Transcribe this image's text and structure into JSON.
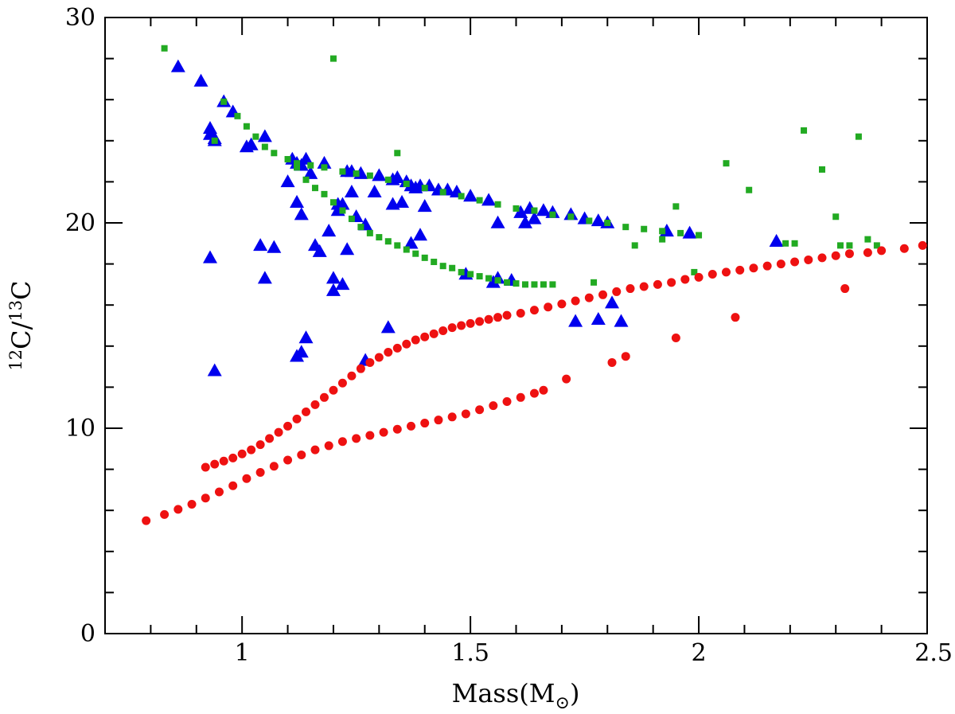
{
  "chart_data": {
    "type": "scatter",
    "title": "",
    "xlabel": "Mass(M",
    "xlabel_subscript": "⊙",
    "xlabel_close": ")",
    "ylabel": {
      "sup1": "12",
      "base1": "C/",
      "sup2": "13",
      "base2": "C"
    },
    "xlim": [
      0.7,
      2.5
    ],
    "ylim": [
      0,
      30
    ],
    "xticks": [
      1,
      1.5,
      2,
      2.5
    ],
    "xtick_labels": [
      "1",
      "1.5",
      "2",
      "2.5"
    ],
    "yticks": [
      0,
      10,
      20,
      30
    ],
    "ytick_labels": [
      "0",
      "10",
      "20",
      "30"
    ],
    "x_minor_step": 0.1,
    "y_minor_step": 2,
    "colors": {
      "triangles": "#0000ee",
      "squares": "#22aa22",
      "circles": "#ee1111"
    },
    "series": [
      {
        "name": "upper-green-curve",
        "marker": "square",
        "color": "#22aa22",
        "x": [
          0.83,
          0.96,
          0.99,
          1.01,
          1.03,
          1.05,
          1.07,
          1.1,
          1.12,
          1.15,
          1.18,
          1.22,
          1.25,
          1.28,
          1.32,
          1.36,
          1.4,
          1.44,
          1.48,
          1.52,
          1.56,
          1.6,
          1.64,
          1.68,
          1.72,
          1.76,
          1.8,
          1.84,
          1.88,
          1.92,
          1.96,
          2.0
        ],
        "y": [
          28.5,
          25.9,
          25.2,
          24.7,
          24.2,
          23.7,
          23.4,
          23.1,
          22.9,
          22.8,
          22.7,
          22.5,
          22.4,
          22.3,
          22.1,
          21.9,
          21.7,
          21.5,
          21.3,
          21.1,
          20.9,
          20.7,
          20.6,
          20.4,
          20.3,
          20.1,
          20.0,
          19.8,
          19.7,
          19.6,
          19.5,
          19.4
        ]
      },
      {
        "name": "lower-green-curve",
        "marker": "square",
        "color": "#22aa22",
        "x": [
          1.12,
          1.14,
          1.16,
          1.18,
          1.2,
          1.22,
          1.24,
          1.26,
          1.28,
          1.3,
          1.32,
          1.34,
          1.36,
          1.38,
          1.4,
          1.42,
          1.44,
          1.46,
          1.48,
          1.5,
          1.52,
          1.54,
          1.56,
          1.58,
          1.6,
          1.62,
          1.64,
          1.66,
          1.68
        ],
        "y": [
          22.7,
          22.1,
          21.7,
          21.4,
          21.0,
          20.6,
          20.2,
          19.8,
          19.5,
          19.3,
          19.1,
          18.9,
          18.7,
          18.5,
          18.3,
          18.1,
          17.9,
          17.8,
          17.6,
          17.5,
          17.4,
          17.3,
          17.2,
          17.1,
          17.05,
          17.0,
          17.0,
          17.0,
          17.0
        ]
      },
      {
        "name": "scattered-green-points",
        "marker": "square",
        "color": "#22aa22",
        "x": [
          0.94,
          1.2,
          1.34,
          1.77,
          1.86,
          1.92,
          1.95,
          1.99,
          2.06,
          2.11,
          2.19,
          2.21,
          2.23,
          2.27,
          2.3,
          2.31,
          2.33,
          2.35,
          2.37,
          2.39
        ],
        "y": [
          24.0,
          28.0,
          23.4,
          17.1,
          18.9,
          19.2,
          20.8,
          17.6,
          22.9,
          21.6,
          19.0,
          19.0,
          24.5,
          22.6,
          20.3,
          18.9,
          18.9,
          24.2,
          19.2,
          18.9
        ]
      },
      {
        "name": "blue-triangles",
        "marker": "triangle",
        "color": "#0000ee",
        "x": [
          0.86,
          0.91,
          0.93,
          0.93,
          0.94,
          0.94,
          0.96,
          0.98,
          1.01,
          1.02,
          1.05,
          1.1,
          1.11,
          1.12,
          1.13,
          1.14,
          1.15,
          1.18,
          1.23,
          1.24,
          1.26,
          1.3,
          1.33,
          1.34,
          1.36,
          1.37,
          1.38,
          1.39,
          1.41,
          1.43,
          1.45,
          1.47,
          1.5,
          1.54,
          1.56,
          1.61,
          1.63,
          1.66,
          1.68,
          1.72,
          1.75,
          1.78,
          1.8,
          1.93,
          1.98,
          2.17,
          0.93,
          1.04,
          1.05,
          1.07,
          1.12,
          1.13,
          1.16,
          1.17,
          1.19,
          1.2,
          1.21,
          1.22,
          1.23,
          1.25,
          1.27,
          1.29,
          1.33,
          1.35,
          1.37,
          1.39,
          1.4,
          1.21,
          1.2,
          1.22,
          1.24,
          1.49,
          1.55,
          1.56,
          1.59,
          1.62,
          1.64,
          1.12,
          1.13,
          1.14,
          1.27,
          1.32,
          0.94,
          1.73,
          1.78,
          1.81,
          1.83
        ],
        "y": [
          27.6,
          26.9,
          24.6,
          24.3,
          24.1,
          24.0,
          25.9,
          25.4,
          23.7,
          23.8,
          24.2,
          22.0,
          23.1,
          22.9,
          22.8,
          23.1,
          22.4,
          22.9,
          22.5,
          22.5,
          22.4,
          22.3,
          22.1,
          22.2,
          22.0,
          21.8,
          21.7,
          21.8,
          21.8,
          21.6,
          21.6,
          21.5,
          21.3,
          21.1,
          20.0,
          20.5,
          20.7,
          20.6,
          20.5,
          20.4,
          20.2,
          20.1,
          20.0,
          19.6,
          19.5,
          19.1,
          18.3,
          18.9,
          17.3,
          18.8,
          21.0,
          20.4,
          18.9,
          18.6,
          19.6,
          17.3,
          20.9,
          17.0,
          18.7,
          20.3,
          19.9,
          21.5,
          20.9,
          21.0,
          19.0,
          19.4,
          20.8,
          20.6,
          16.7,
          20.9,
          21.5,
          17.5,
          17.1,
          17.3,
          17.2,
          20.0,
          20.2,
          13.5,
          13.7,
          14.4,
          13.3,
          14.9,
          12.8,
          15.2,
          15.3,
          16.1,
          15.2
        ]
      },
      {
        "name": "upper-red-curve",
        "marker": "circle",
        "color": "#ee1111",
        "x": [
          0.92,
          0.94,
          0.96,
          0.98,
          1.0,
          1.02,
          1.04,
          1.06,
          1.08,
          1.1,
          1.12,
          1.14,
          1.16,
          1.18,
          1.2,
          1.22,
          1.24,
          1.26,
          1.28,
          1.3,
          1.32,
          1.34,
          1.36,
          1.38,
          1.4,
          1.42,
          1.44,
          1.46,
          1.48,
          1.5,
          1.52,
          1.54,
          1.56,
          1.58,
          1.61,
          1.64,
          1.67,
          1.7,
          1.73,
          1.76,
          1.79,
          1.82,
          1.85,
          1.88,
          1.91,
          1.94,
          1.97,
          2.0,
          2.03,
          2.06,
          2.09,
          2.12,
          2.15,
          2.18,
          2.21,
          2.24,
          2.27,
          2.3,
          2.33,
          2.37,
          2.4,
          2.45,
          2.49
        ],
        "y": [
          8.1,
          8.25,
          8.4,
          8.55,
          8.75,
          8.95,
          9.2,
          9.5,
          9.8,
          10.1,
          10.45,
          10.8,
          11.15,
          11.5,
          11.85,
          12.2,
          12.55,
          12.9,
          13.2,
          13.45,
          13.7,
          13.9,
          14.1,
          14.3,
          14.45,
          14.6,
          14.75,
          14.9,
          15.0,
          15.1,
          15.2,
          15.3,
          15.4,
          15.5,
          15.6,
          15.75,
          15.9,
          16.05,
          16.2,
          16.35,
          16.5,
          16.65,
          16.8,
          16.9,
          17.0,
          17.1,
          17.25,
          17.35,
          17.5,
          17.6,
          17.7,
          17.8,
          17.9,
          18.0,
          18.1,
          18.2,
          18.3,
          18.4,
          18.5,
          18.55,
          18.65,
          18.75,
          18.9
        ]
      },
      {
        "name": "lower-red-curve",
        "marker": "circle",
        "color": "#ee1111",
        "x": [
          0.79,
          0.83,
          0.86,
          0.89,
          0.92,
          0.95,
          0.98,
          1.01,
          1.04,
          1.07,
          1.1,
          1.13,
          1.16,
          1.19,
          1.22,
          1.25,
          1.28,
          1.31,
          1.34,
          1.37,
          1.4,
          1.43,
          1.46,
          1.49,
          1.52,
          1.55,
          1.58,
          1.61,
          1.64,
          1.66,
          1.71
        ],
        "y": [
          5.5,
          5.8,
          6.05,
          6.3,
          6.6,
          6.9,
          7.2,
          7.55,
          7.85,
          8.15,
          8.45,
          8.7,
          8.95,
          9.15,
          9.35,
          9.5,
          9.65,
          9.8,
          9.95,
          10.1,
          10.25,
          10.4,
          10.55,
          10.7,
          10.9,
          11.1,
          11.3,
          11.5,
          11.7,
          11.85,
          12.4
        ]
      },
      {
        "name": "scattered-red-points",
        "marker": "circle",
        "color": "#ee1111",
        "x": [
          1.81,
          1.84,
          1.95,
          2.08,
          2.32
        ],
        "y": [
          13.2,
          13.5,
          14.4,
          15.4,
          16.8
        ]
      }
    ]
  }
}
